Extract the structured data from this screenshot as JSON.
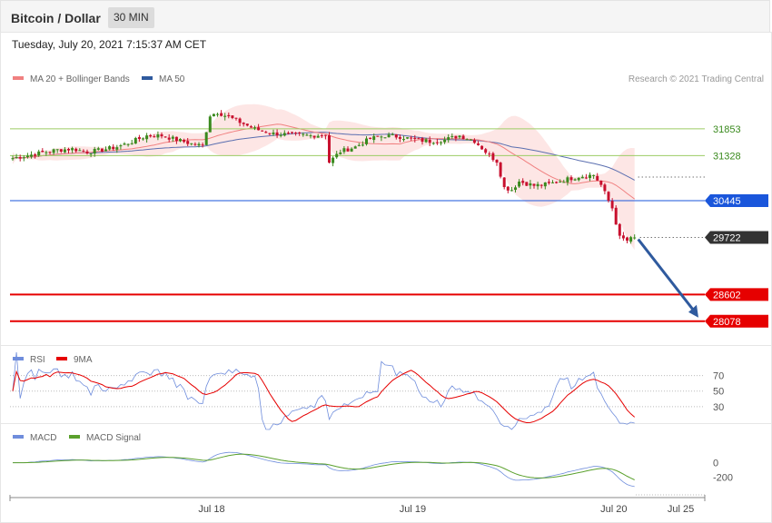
{
  "header": {
    "title": "Bitcoin / Dollar",
    "interval": "30 MIN",
    "datetime": "Tuesday, July 20, 2021 7:15:37 AM CET"
  },
  "legend": {
    "ma20": "MA 20 + Bollinger Bands",
    "ma50": "MA 50",
    "rsi": "RSI",
    "rsi_ma": "9MA",
    "macd": "MACD",
    "macd_signal": "MACD Signal"
  },
  "copyright": "Research © 2021 Trading Central",
  "colors": {
    "up": "#3a8a1e",
    "down": "#c8102e",
    "ma20": "#f08080",
    "ma50": "#5b6fb0",
    "bb_fill": "#fde0de",
    "resistance": "#9ccc65",
    "pivot": "#1a56db",
    "current": "#333333",
    "support": "#e60000",
    "arrow": "#2f5a9e",
    "rsi": "#6f8ddc",
    "rsi_ma": "#e60000",
    "macd": "#6f8ddc",
    "macd_signal": "#5aa02c"
  },
  "chart_data": {
    "type": "candlestick",
    "symbol": "Bitcoin / Dollar",
    "interval": "30 MIN",
    "ylim": [
      27700,
      32600
    ],
    "price_levels": [
      {
        "label": "31853",
        "value": 31853,
        "kind": "resistance"
      },
      {
        "label": "31328",
        "value": 31328,
        "kind": "resistance"
      },
      {
        "label": "30445",
        "value": 30445,
        "kind": "pivot"
      },
      {
        "label": "29722",
        "value": 29722,
        "kind": "current"
      },
      {
        "label": "28602",
        "value": 28602,
        "kind": "support"
      },
      {
        "label": "28078",
        "value": 28078,
        "kind": "support"
      }
    ],
    "forecast_arrow": {
      "from": 29722,
      "to": 28078
    },
    "x_ticks": [
      {
        "label": "Jul 18",
        "bar": 50
      },
      {
        "label": "Jul 19",
        "bar": 104
      },
      {
        "label": "Jul 20",
        "bar": 158
      },
      {
        "label": "Jul 25",
        "bar": 176
      }
    ],
    "bar_count": 184,
    "close_anchors": [
      [
        0,
        31280
      ],
      [
        4,
        31330
      ],
      [
        8,
        31390
      ],
      [
        12,
        31440
      ],
      [
        16,
        31460
      ],
      [
        20,
        31400
      ],
      [
        24,
        31440
      ],
      [
        28,
        31500
      ],
      [
        32,
        31600
      ],
      [
        36,
        31720
      ],
      [
        40,
        31720
      ],
      [
        44,
        31640
      ],
      [
        48,
        31560
      ],
      [
        51,
        31520
      ],
      [
        53,
        32120
      ],
      [
        55,
        32180
      ],
      [
        60,
        32020
      ],
      [
        65,
        31850
      ],
      [
        70,
        31760
      ],
      [
        75,
        31740
      ],
      [
        80,
        31720
      ],
      [
        84,
        31740
      ],
      [
        85,
        31200
      ],
      [
        88,
        31410
      ],
      [
        92,
        31500
      ],
      [
        96,
        31660
      ],
      [
        100,
        31720
      ],
      [
        104,
        31700
      ],
      [
        108,
        31640
      ],
      [
        112,
        31610
      ],
      [
        116,
        31640
      ],
      [
        120,
        31720
      ],
      [
        124,
        31620
      ],
      [
        128,
        31330
      ],
      [
        130,
        31220
      ],
      [
        132,
        30700
      ],
      [
        134,
        30660
      ],
      [
        136,
        30820
      ],
      [
        140,
        30740
      ],
      [
        144,
        30770
      ],
      [
        148,
        30850
      ],
      [
        152,
        30920
      ],
      [
        156,
        30950
      ],
      [
        158,
        30750
      ],
      [
        160,
        30440
      ],
      [
        161,
        30300
      ],
      [
        163,
        29720
      ],
      [
        165,
        29660
      ],
      [
        167,
        29722
      ]
    ],
    "rsi": {
      "levels": [
        70,
        50,
        30
      ],
      "ylim": [
        10,
        80
      ]
    },
    "macd": {
      "levels": [
        0,
        -200
      ],
      "ylim": [
        -450,
        250
      ]
    }
  }
}
